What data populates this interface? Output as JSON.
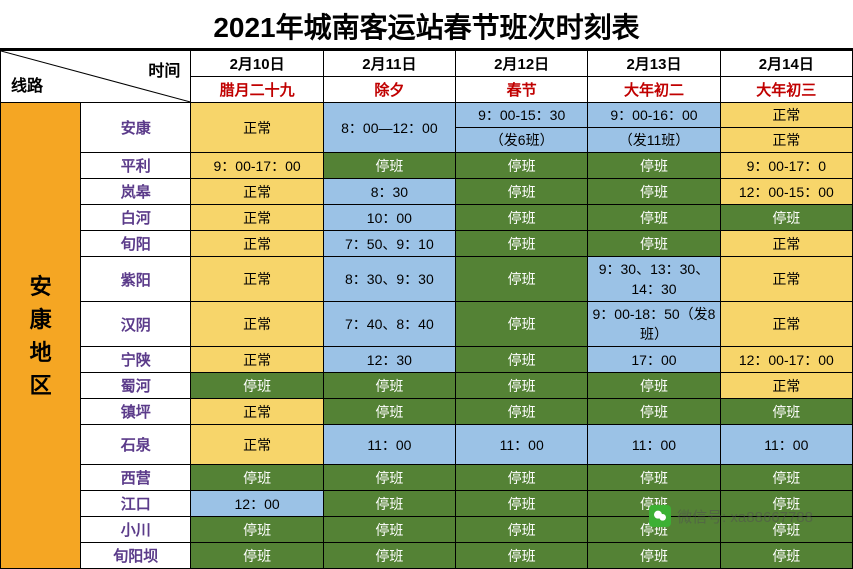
{
  "title": "2021年城南客运站春节班次时刻表",
  "diag": {
    "top": "时间",
    "bottom": "线路"
  },
  "dates": [
    "2月10日",
    "2月11日",
    "2月12日",
    "2月13日",
    "2月14日"
  ],
  "lunar": [
    "腊月二十九",
    "除夕",
    "春节",
    "大年初二",
    "大年初三"
  ],
  "region": "安康地区",
  "colors": {
    "yellow": "#f7d56a",
    "blue": "#9bc2e6",
    "green": "#548235",
    "white": "#ffffff",
    "region": "#f5a623",
    "route_name": "#5b3b8a",
    "lunar_text": "#c00000"
  },
  "routes": [
    {
      "name": "安康",
      "multi": true,
      "cells": [
        [
          {
            "v": "正常",
            "c": "yellow",
            "rs": 2
          }
        ],
        [
          {
            "v": "8：00—12：00",
            "c": "blue",
            "rs": 2
          }
        ],
        [
          {
            "v": "9：00-15：30",
            "c": "blue"
          },
          {
            "v": "（发6班）",
            "c": "blue"
          }
        ],
        [
          {
            "v": "9：00-16：00",
            "c": "blue"
          },
          {
            "v": "（发11班）",
            "c": "blue"
          }
        ],
        [
          {
            "v": "正常",
            "c": "yellow"
          },
          {
            "v": "正常",
            "c": "yellow"
          }
        ]
      ]
    },
    {
      "name": "平利",
      "cells": [
        {
          "v": "9：00-17：00",
          "c": "yellow"
        },
        {
          "v": "停班",
          "c": "green"
        },
        {
          "v": "停班",
          "c": "green"
        },
        {
          "v": "停班",
          "c": "green"
        },
        {
          "v": "9：00-17：0",
          "c": "yellow"
        }
      ]
    },
    {
      "name": "岚皋",
      "cells": [
        {
          "v": "正常",
          "c": "yellow"
        },
        {
          "v": "8：30",
          "c": "blue"
        },
        {
          "v": "停班",
          "c": "green"
        },
        {
          "v": "停班",
          "c": "green"
        },
        {
          "v": "12：00-15：00",
          "c": "yellow"
        }
      ]
    },
    {
      "name": "白河",
      "cells": [
        {
          "v": "正常",
          "c": "yellow"
        },
        {
          "v": "10：00",
          "c": "blue"
        },
        {
          "v": "停班",
          "c": "green"
        },
        {
          "v": "停班",
          "c": "green"
        },
        {
          "v": "停班",
          "c": "green"
        }
      ]
    },
    {
      "name": "旬阳",
      "cells": [
        {
          "v": "正常",
          "c": "yellow"
        },
        {
          "v": "7：50、9：10",
          "c": "blue"
        },
        {
          "v": "停班",
          "c": "green"
        },
        {
          "v": "停班",
          "c": "green"
        },
        {
          "v": "正常",
          "c": "yellow"
        }
      ]
    },
    {
      "name": "紫阳",
      "tall": true,
      "cells": [
        {
          "v": "正常",
          "c": "yellow"
        },
        {
          "v": "8：30、9：30",
          "c": "blue"
        },
        {
          "v": "停班",
          "c": "green"
        },
        {
          "v": "9：30、13：30、14：30",
          "c": "blue"
        },
        {
          "v": "正常",
          "c": "yellow"
        }
      ]
    },
    {
      "name": "汉阴",
      "tall": true,
      "cells": [
        {
          "v": "正常",
          "c": "yellow"
        },
        {
          "v": "7：40、8：40",
          "c": "blue"
        },
        {
          "v": "停班",
          "c": "green"
        },
        {
          "v": "9：00-18：50（发8班）",
          "c": "blue"
        },
        {
          "v": "正常",
          "c": "yellow"
        }
      ]
    },
    {
      "name": "宁陕",
      "cells": [
        {
          "v": "正常",
          "c": "yellow"
        },
        {
          "v": "12：30",
          "c": "blue"
        },
        {
          "v": "停班",
          "c": "green"
        },
        {
          "v": "17：00",
          "c": "blue"
        },
        {
          "v": "12：00-17：00",
          "c": "yellow"
        }
      ]
    },
    {
      "name": "蜀河",
      "cells": [
        {
          "v": "停班",
          "c": "green"
        },
        {
          "v": "停班",
          "c": "green"
        },
        {
          "v": "停班",
          "c": "green"
        },
        {
          "v": "停班",
          "c": "green"
        },
        {
          "v": "正常",
          "c": "yellow"
        }
      ]
    },
    {
      "name": "镇坪",
      "cells": [
        {
          "v": "正常",
          "c": "yellow"
        },
        {
          "v": "停班",
          "c": "green"
        },
        {
          "v": "停班",
          "c": "green"
        },
        {
          "v": "停班",
          "c": "green"
        },
        {
          "v": "停班",
          "c": "green"
        }
      ]
    },
    {
      "name": "石泉",
      "tall": true,
      "cells": [
        {
          "v": "正常",
          "c": "yellow"
        },
        {
          "v": "11：00",
          "c": "blue"
        },
        {
          "v": "11：00",
          "c": "blue"
        },
        {
          "v": "11：00",
          "c": "blue"
        },
        {
          "v": "11：00",
          "c": "blue"
        }
      ]
    },
    {
      "name": "西营",
      "cells": [
        {
          "v": "停班",
          "c": "green"
        },
        {
          "v": "停班",
          "c": "green"
        },
        {
          "v": "停班",
          "c": "green"
        },
        {
          "v": "停班",
          "c": "green"
        },
        {
          "v": "停班",
          "c": "green"
        }
      ]
    },
    {
      "name": "江口",
      "cells": [
        {
          "v": "12：00",
          "c": "blue"
        },
        {
          "v": "停班",
          "c": "green"
        },
        {
          "v": "停班",
          "c": "green"
        },
        {
          "v": "停班",
          "c": "green"
        },
        {
          "v": "停班",
          "c": "green"
        }
      ]
    },
    {
      "name": "小川",
      "cells": [
        {
          "v": "停班",
          "c": "green"
        },
        {
          "v": "停班",
          "c": "green"
        },
        {
          "v": "停班",
          "c": "green"
        },
        {
          "v": "停班",
          "c": "green"
        },
        {
          "v": "停班",
          "c": "green"
        }
      ]
    },
    {
      "name": "旬阳坝",
      "cells": [
        {
          "v": "停班",
          "c": "green"
        },
        {
          "v": "停班",
          "c": "green"
        },
        {
          "v": "停班",
          "c": "green"
        },
        {
          "v": "停班",
          "c": "green"
        },
        {
          "v": "停班",
          "c": "green"
        }
      ]
    }
  ],
  "watermark": "微信号: xa88667788"
}
